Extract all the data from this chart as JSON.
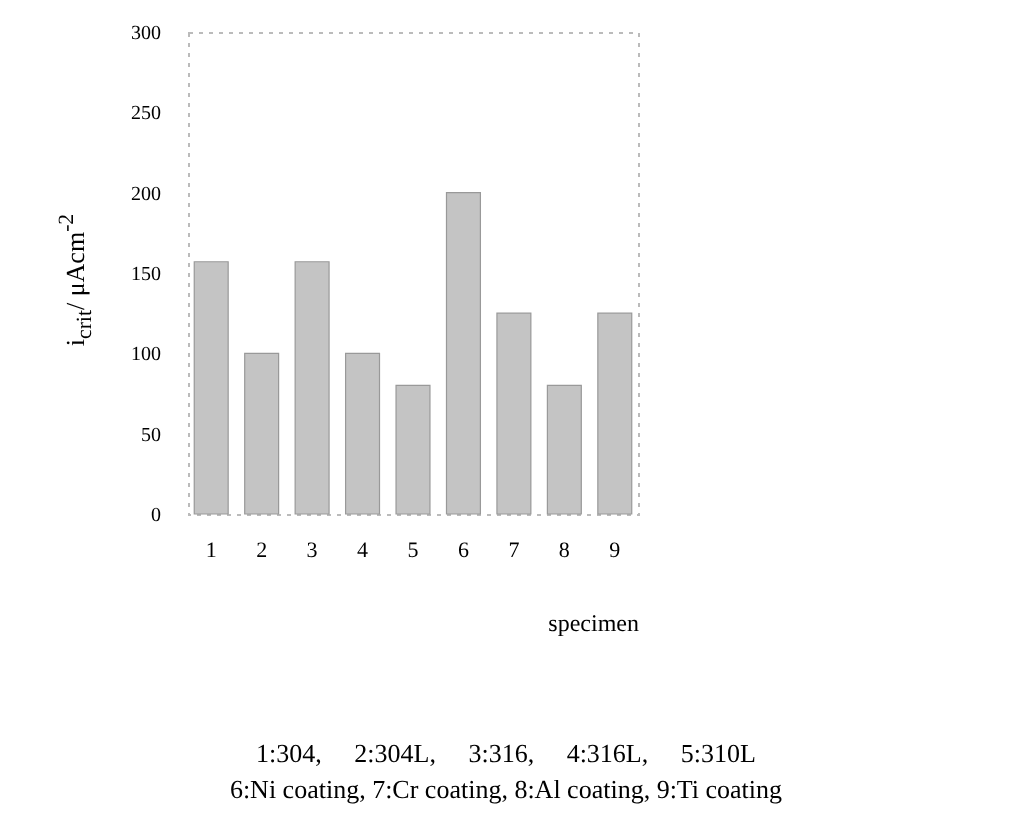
{
  "chart_data": {
    "type": "bar",
    "xlabel": "specimen",
    "ylabel": "i$_{crit}$/ μAcm$^{-2}$",
    "categories": [
      "1",
      "2",
      "3",
      "4",
      "5",
      "6",
      "7",
      "8",
      "9"
    ],
    "values": [
      157,
      100,
      157,
      100,
      80,
      200,
      125,
      80,
      125
    ],
    "color": "#c4c4c4",
    "ylim": [
      0,
      300
    ],
    "yticks": [
      0,
      50,
      100,
      150,
      200,
      250,
      300
    ],
    "grid": false,
    "annotations": [
      "1:304,     2:304L,     3:316,     4:316L,     5:310L",
      "6:Ni coating, 7:Cr coating, 8:Al coating, 9:Ti coating"
    ]
  }
}
